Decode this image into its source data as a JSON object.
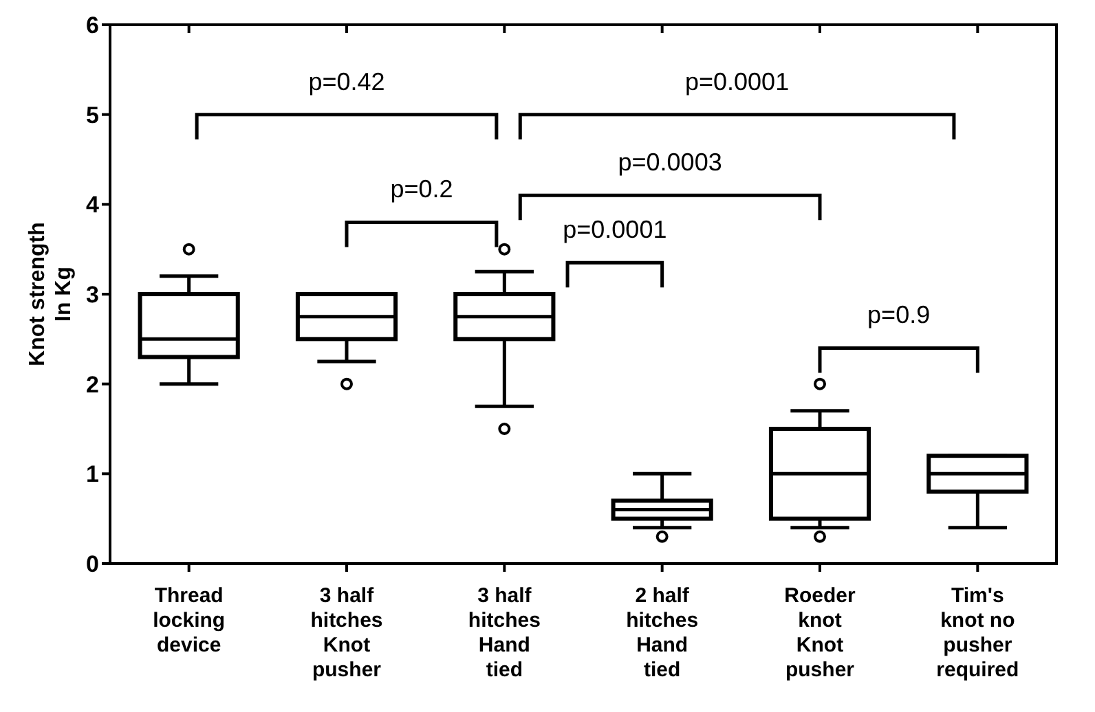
{
  "chart_data": {
    "type": "box",
    "categories": [
      "Thread locking device",
      "3 half hitches Knot pusher",
      "3 half hitches Hand tied",
      "2 half hitches Hand tied",
      "Roeder knot Knot pusher",
      "Tim's knot no pusher required"
    ],
    "boxes": [
      {
        "low": 2.0,
        "q1": 2.3,
        "median": 2.5,
        "q3": 3.0,
        "high": 3.2,
        "outliers": [
          3.5
        ]
      },
      {
        "low": 2.25,
        "q1": 2.5,
        "median": 2.75,
        "q3": 3.0,
        "high": 3.0,
        "outliers": [
          2.0
        ]
      },
      {
        "low": 1.75,
        "q1": 2.5,
        "median": 2.75,
        "q3": 3.0,
        "high": 3.25,
        "outliers": [
          3.5,
          1.5
        ]
      },
      {
        "low": 0.4,
        "q1": 0.5,
        "median": 0.6,
        "q3": 0.7,
        "high": 1.0,
        "outliers": [
          0.3
        ]
      },
      {
        "low": 0.4,
        "q1": 0.5,
        "median": 1.0,
        "q3": 1.5,
        "high": 1.7,
        "outliers": [
          2.0,
          0.3
        ]
      },
      {
        "low": 0.4,
        "q1": 0.8,
        "median": 1.0,
        "q3": 1.2,
        "high": 1.2
      }
    ],
    "ylabel": "Knot strength In Kg",
    "ylim": [
      0,
      6
    ],
    "yticks": [
      0,
      1,
      2,
      3,
      4,
      5,
      6
    ],
    "grid": false,
    "annotations": [
      "p=0.42",
      "p=0.0001",
      "p=0.2",
      "p=0.0003",
      "p=0.0001",
      "p=0.9"
    ]
  }
}
